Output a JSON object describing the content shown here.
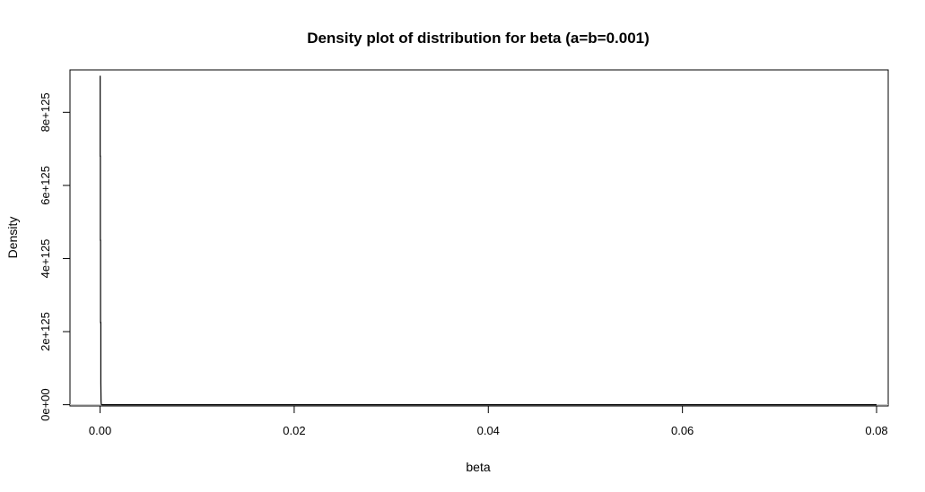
{
  "chart_data": {
    "type": "line",
    "title": "Density plot of distribution for beta (a=b=0.001)",
    "xlabel": "beta",
    "ylabel": "Density",
    "xlim": [
      -0.0031,
      0.0812
    ],
    "ylim": [
      -3.4e+123,
      9.16e+125
    ],
    "x_ticks": [
      0,
      0.02,
      0.04,
      0.06,
      0.08
    ],
    "x_tick_labels": [
      "0.00",
      "0.02",
      "0.04",
      "0.06",
      "0.08"
    ],
    "y_ticks": [
      0,
      2e+125,
      4e+125,
      6e+125,
      8e+125
    ],
    "y_tick_labels": [
      "0e+00",
      "2e+125",
      "4e+125",
      "6e+125",
      "8e+125"
    ],
    "baseline": {
      "y": 0,
      "color": "#bebebe"
    },
    "series": [
      {
        "color": "#000000",
        "x": [
          1e-05,
          1e-05,
          3e-05,
          3e-05,
          5e-05,
          5e-05,
          5e-05,
          8e-05,
          8e-05,
          0.0001,
          0.00012,
          0.00016,
          0.0002,
          0.0004,
          0.0008,
          0.002,
          0.01,
          0.02,
          0.03,
          0.04,
          0.05,
          0.06,
          0.07,
          0.08
        ],
        "y": [
          9e+125,
          6.8e+125,
          6.8e+125,
          4.5e+125,
          4.5e+125,
          2.3e+125,
          2.25e+125,
          2.25e+125,
          6e+124,
          1e+124,
          2e+123,
          5e+122,
          0,
          0,
          0,
          0,
          0,
          0,
          0,
          0,
          0,
          0,
          0,
          0
        ]
      }
    ]
  }
}
